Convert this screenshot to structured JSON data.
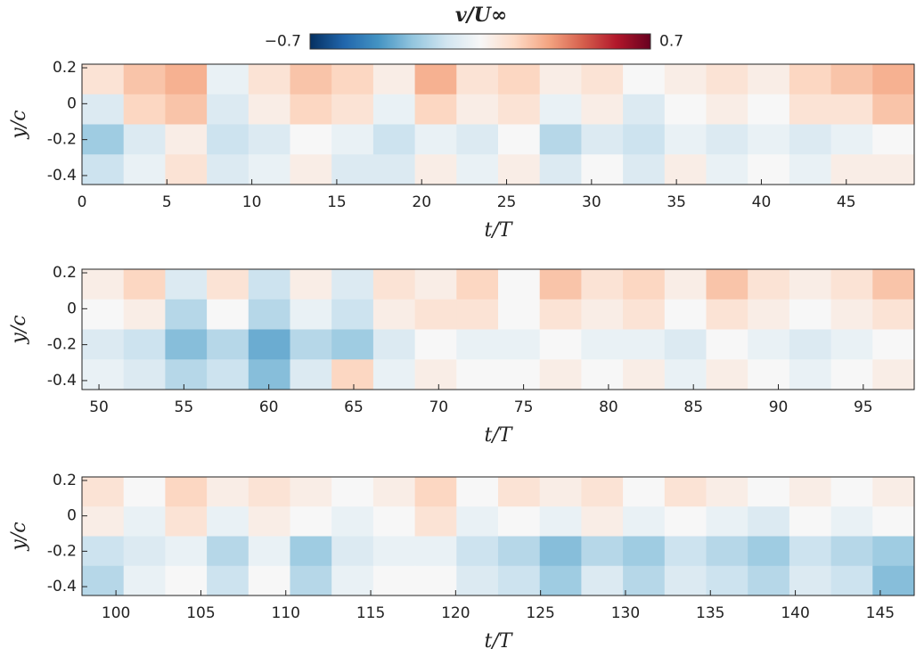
{
  "colorbar": {
    "title": "v/U∞",
    "lim": [
      -0.7,
      0.7
    ],
    "ticks": [
      {
        "value": -0.7,
        "label": "−0.7"
      },
      0.7
    ],
    "colormap": [
      "#053061",
      "#2166ac",
      "#4393c3",
      "#92c5de",
      "#d1e5f0",
      "#f7f7f7",
      "#fddbc7",
      "#f4a582",
      "#d6604d",
      "#b2182b",
      "#67001f"
    ]
  },
  "chart_data": [
    {
      "type": "heatmap",
      "xlabel": "t/T",
      "ylabel": "y/c",
      "xlim": [
        0,
        49
      ],
      "ylim": [
        -0.45,
        0.22
      ],
      "xticks": [
        0,
        5,
        10,
        15,
        20,
        25,
        30,
        35,
        40,
        45
      ],
      "yticks": [
        0.2,
        0,
        -0.2,
        -0.4
      ],
      "values": [
        [
          0.1,
          0.2,
          0.25,
          -0.05,
          0.1,
          0.2,
          0.15,
          0.05,
          0.25,
          0.1,
          0.15,
          0.05,
          0.1,
          0.0,
          0.05,
          0.1,
          0.05,
          0.15,
          0.2,
          0.25
        ],
        [
          -0.1,
          0.15,
          0.2,
          -0.1,
          0.05,
          0.15,
          0.1,
          -0.05,
          0.15,
          0.05,
          0.1,
          -0.05,
          0.05,
          -0.1,
          0.0,
          0.05,
          0.0,
          0.1,
          0.1,
          0.2
        ],
        [
          -0.25,
          -0.1,
          0.05,
          -0.15,
          -0.1,
          0.0,
          -0.05,
          -0.15,
          -0.05,
          -0.1,
          0.0,
          -0.2,
          -0.1,
          -0.15,
          -0.05,
          -0.1,
          -0.05,
          -0.1,
          -0.05,
          0.0
        ],
        [
          -0.15,
          -0.05,
          0.1,
          -0.1,
          -0.05,
          0.05,
          -0.1,
          -0.1,
          0.05,
          -0.05,
          0.05,
          -0.1,
          0.0,
          -0.1,
          0.05,
          -0.05,
          0.0,
          -0.05,
          0.05,
          0.05
        ]
      ]
    },
    {
      "type": "heatmap",
      "xlabel": "t/T",
      "ylabel": "y/c",
      "xlim": [
        49,
        98
      ],
      "ylim": [
        -0.45,
        0.22
      ],
      "xticks": [
        50,
        55,
        60,
        65,
        70,
        75,
        80,
        85,
        90,
        95
      ],
      "yticks": [
        0.2,
        0,
        -0.2,
        -0.4
      ],
      "values": [
        [
          0.05,
          0.15,
          -0.1,
          0.1,
          -0.15,
          0.05,
          -0.1,
          0.1,
          0.05,
          0.15,
          0.0,
          0.2,
          0.1,
          0.15,
          0.05,
          0.2,
          0.1,
          0.05,
          0.1,
          0.2
        ],
        [
          0.0,
          0.05,
          -0.2,
          0.0,
          -0.2,
          -0.05,
          -0.15,
          0.05,
          0.1,
          0.1,
          0.0,
          0.1,
          0.05,
          0.1,
          0.0,
          0.1,
          0.05,
          0.0,
          0.05,
          0.1
        ],
        [
          -0.1,
          -0.15,
          -0.3,
          -0.2,
          -0.35,
          -0.2,
          -0.25,
          -0.1,
          0.0,
          -0.05,
          -0.05,
          0.0,
          -0.05,
          -0.05,
          -0.1,
          0.0,
          -0.05,
          -0.1,
          -0.05,
          0.0
        ],
        [
          -0.05,
          -0.1,
          -0.2,
          -0.15,
          -0.3,
          -0.1,
          0.15,
          -0.05,
          0.05,
          0.0,
          0.0,
          0.05,
          0.0,
          0.05,
          -0.05,
          0.05,
          0.0,
          -0.05,
          0.0,
          0.05
        ]
      ]
    },
    {
      "type": "heatmap",
      "xlabel": "t/T",
      "ylabel": "y/c",
      "xlim": [
        98,
        147
      ],
      "ylim": [
        -0.45,
        0.22
      ],
      "xticks": [
        100,
        105,
        110,
        115,
        120,
        125,
        130,
        135,
        140,
        145
      ],
      "yticks": [
        0.2,
        0,
        -0.2,
        -0.4
      ],
      "values": [
        [
          0.1,
          0.0,
          0.15,
          0.05,
          0.1,
          0.05,
          0.0,
          0.05,
          0.15,
          0.0,
          0.1,
          0.05,
          0.1,
          0.0,
          0.1,
          0.05,
          0.0,
          0.05,
          0.0,
          0.05
        ],
        [
          0.05,
          -0.05,
          0.1,
          -0.05,
          0.05,
          0.0,
          -0.05,
          0.0,
          0.1,
          -0.05,
          0.0,
          -0.05,
          0.05,
          -0.05,
          0.0,
          -0.05,
          -0.1,
          0.0,
          -0.05,
          0.0
        ],
        [
          -0.15,
          -0.1,
          -0.05,
          -0.2,
          -0.05,
          -0.25,
          -0.1,
          -0.05,
          -0.05,
          -0.15,
          -0.2,
          -0.3,
          -0.2,
          -0.25,
          -0.15,
          -0.2,
          -0.25,
          -0.15,
          -0.2,
          -0.25
        ],
        [
          -0.2,
          -0.05,
          0.0,
          -0.15,
          0.0,
          -0.2,
          -0.05,
          0.0,
          0.0,
          -0.1,
          -0.15,
          -0.25,
          -0.1,
          -0.2,
          -0.1,
          -0.15,
          -0.2,
          -0.1,
          -0.15,
          -0.3
        ]
      ]
    }
  ]
}
